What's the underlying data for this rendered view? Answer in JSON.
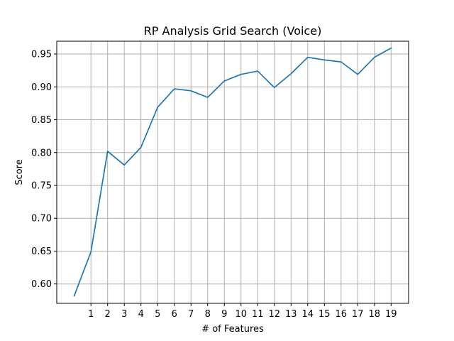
{
  "chart_data": {
    "type": "line",
    "title": "RP Analysis Grid Search (Voice)",
    "xlabel": "# of Features",
    "ylabel": "Score",
    "x_ticks": [
      1,
      2,
      3,
      4,
      5,
      6,
      7,
      8,
      9,
      10,
      11,
      12,
      13,
      14,
      15,
      16,
      17,
      18,
      19
    ],
    "y_ticks": [
      "0.60",
      "0.65",
      "0.70",
      "0.75",
      "0.80",
      "0.85",
      "0.90",
      "0.95"
    ],
    "xlim": [
      -1.05,
      20.05
    ],
    "ylim": [
      0.5705,
      0.9695
    ],
    "grid": true,
    "series": [
      {
        "color": "#1f77b4",
        "x": [
          0,
          1,
          2,
          3,
          4,
          5,
          6,
          7,
          8,
          9,
          10,
          11,
          12,
          13,
          14,
          15,
          16,
          17,
          18,
          19
        ],
        "y": [
          0.582,
          0.649,
          0.802,
          0.781,
          0.808,
          0.869,
          0.897,
          0.894,
          0.884,
          0.909,
          0.919,
          0.924,
          0.899,
          0.92,
          0.945,
          0.941,
          0.938,
          0.919,
          0.945,
          0.959
        ]
      }
    ]
  }
}
